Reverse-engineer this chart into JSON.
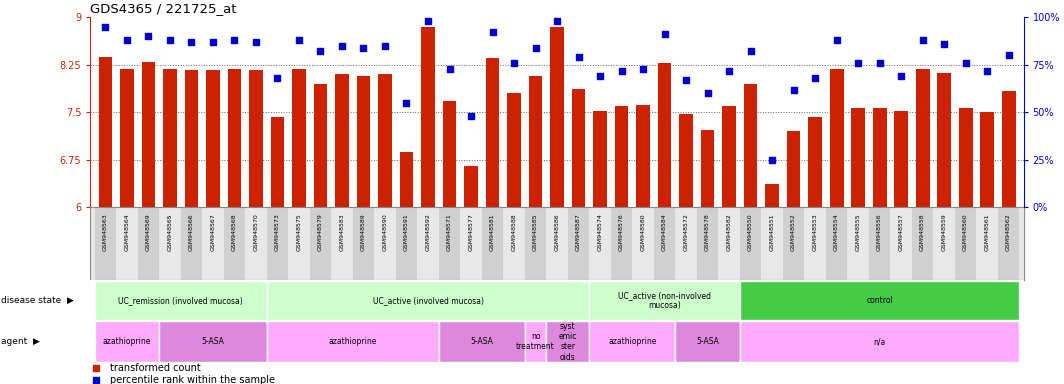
{
  "title": "GDS4365 / 221725_at",
  "samples": [
    "GSM948563",
    "GSM948564",
    "GSM948569",
    "GSM948565",
    "GSM948566",
    "GSM948567",
    "GSM948568",
    "GSM948570",
    "GSM948573",
    "GSM948575",
    "GSM948579",
    "GSM948583",
    "GSM948589",
    "GSM948590",
    "GSM948591",
    "GSM948592",
    "GSM948571",
    "GSM948577",
    "GSM948581",
    "GSM948588",
    "GSM948585",
    "GSM948586",
    "GSM948587",
    "GSM948574",
    "GSM948576",
    "GSM948580",
    "GSM948584",
    "GSM948572",
    "GSM948578",
    "GSM948582",
    "GSM948550",
    "GSM948551",
    "GSM948552",
    "GSM948553",
    "GSM948554",
    "GSM948555",
    "GSM948556",
    "GSM948557",
    "GSM948558",
    "GSM948559",
    "GSM948560",
    "GSM948561",
    "GSM948562"
  ],
  "values": [
    8.37,
    8.19,
    8.3,
    8.19,
    8.17,
    8.17,
    8.19,
    8.17,
    7.43,
    8.19,
    7.95,
    8.1,
    8.07,
    8.1,
    6.87,
    8.85,
    7.68,
    6.65,
    8.35,
    7.8,
    8.08,
    8.85,
    7.87,
    7.52,
    7.6,
    7.62,
    8.28,
    7.47,
    7.22,
    7.6,
    7.95,
    6.37,
    7.2,
    7.42,
    8.18,
    7.57,
    7.57,
    7.52,
    8.18,
    8.12,
    7.57,
    7.5,
    7.83
  ],
  "percentiles": [
    95,
    88,
    90,
    88,
    87,
    87,
    88,
    87,
    68,
    88,
    82,
    85,
    84,
    85,
    55,
    98,
    73,
    48,
    92,
    76,
    84,
    98,
    79,
    69,
    72,
    73,
    91,
    67,
    60,
    72,
    82,
    25,
    62,
    68,
    88,
    76,
    76,
    69,
    88,
    86,
    76,
    72,
    80
  ],
  "ylim": [
    6,
    9
  ],
  "yticks": [
    6,
    6.75,
    7.5,
    8.25,
    9
  ],
  "right_ytick_vals": [
    0,
    25,
    50,
    75,
    100
  ],
  "bar_color": "#cc2200",
  "dot_color": "#0000cc",
  "disease_state_groups": [
    {
      "label": "UC_remission (involved mucosa)",
      "start": 0,
      "end": 8,
      "color": "#ccffcc"
    },
    {
      "label": "UC_active (involved mucosa)",
      "start": 8,
      "end": 23,
      "color": "#ccffcc"
    },
    {
      "label": "UC_active (non-involved\nmucosa)",
      "start": 23,
      "end": 30,
      "color": "#ccffcc"
    },
    {
      "label": "control",
      "start": 30,
      "end": 43,
      "color": "#44cc44"
    }
  ],
  "agent_groups": [
    {
      "label": "azathioprine",
      "start": 0,
      "end": 3,
      "color": "#ffaaff"
    },
    {
      "label": "5-ASA",
      "start": 3,
      "end": 8,
      "color": "#dd88dd"
    },
    {
      "label": "azathioprine",
      "start": 8,
      "end": 16,
      "color": "#ffaaff"
    },
    {
      "label": "5-ASA",
      "start": 16,
      "end": 20,
      "color": "#dd88dd"
    },
    {
      "label": "no\ntreatment",
      "start": 20,
      "end": 21,
      "color": "#ffaaff"
    },
    {
      "label": "syst\nemic\nster\noids",
      "start": 21,
      "end": 23,
      "color": "#dd88dd"
    },
    {
      "label": "azathioprine",
      "start": 23,
      "end": 27,
      "color": "#ffaaff"
    },
    {
      "label": "5-ASA",
      "start": 27,
      "end": 30,
      "color": "#dd88dd"
    },
    {
      "label": "n/a",
      "start": 30,
      "end": 43,
      "color": "#ffaaff"
    }
  ]
}
